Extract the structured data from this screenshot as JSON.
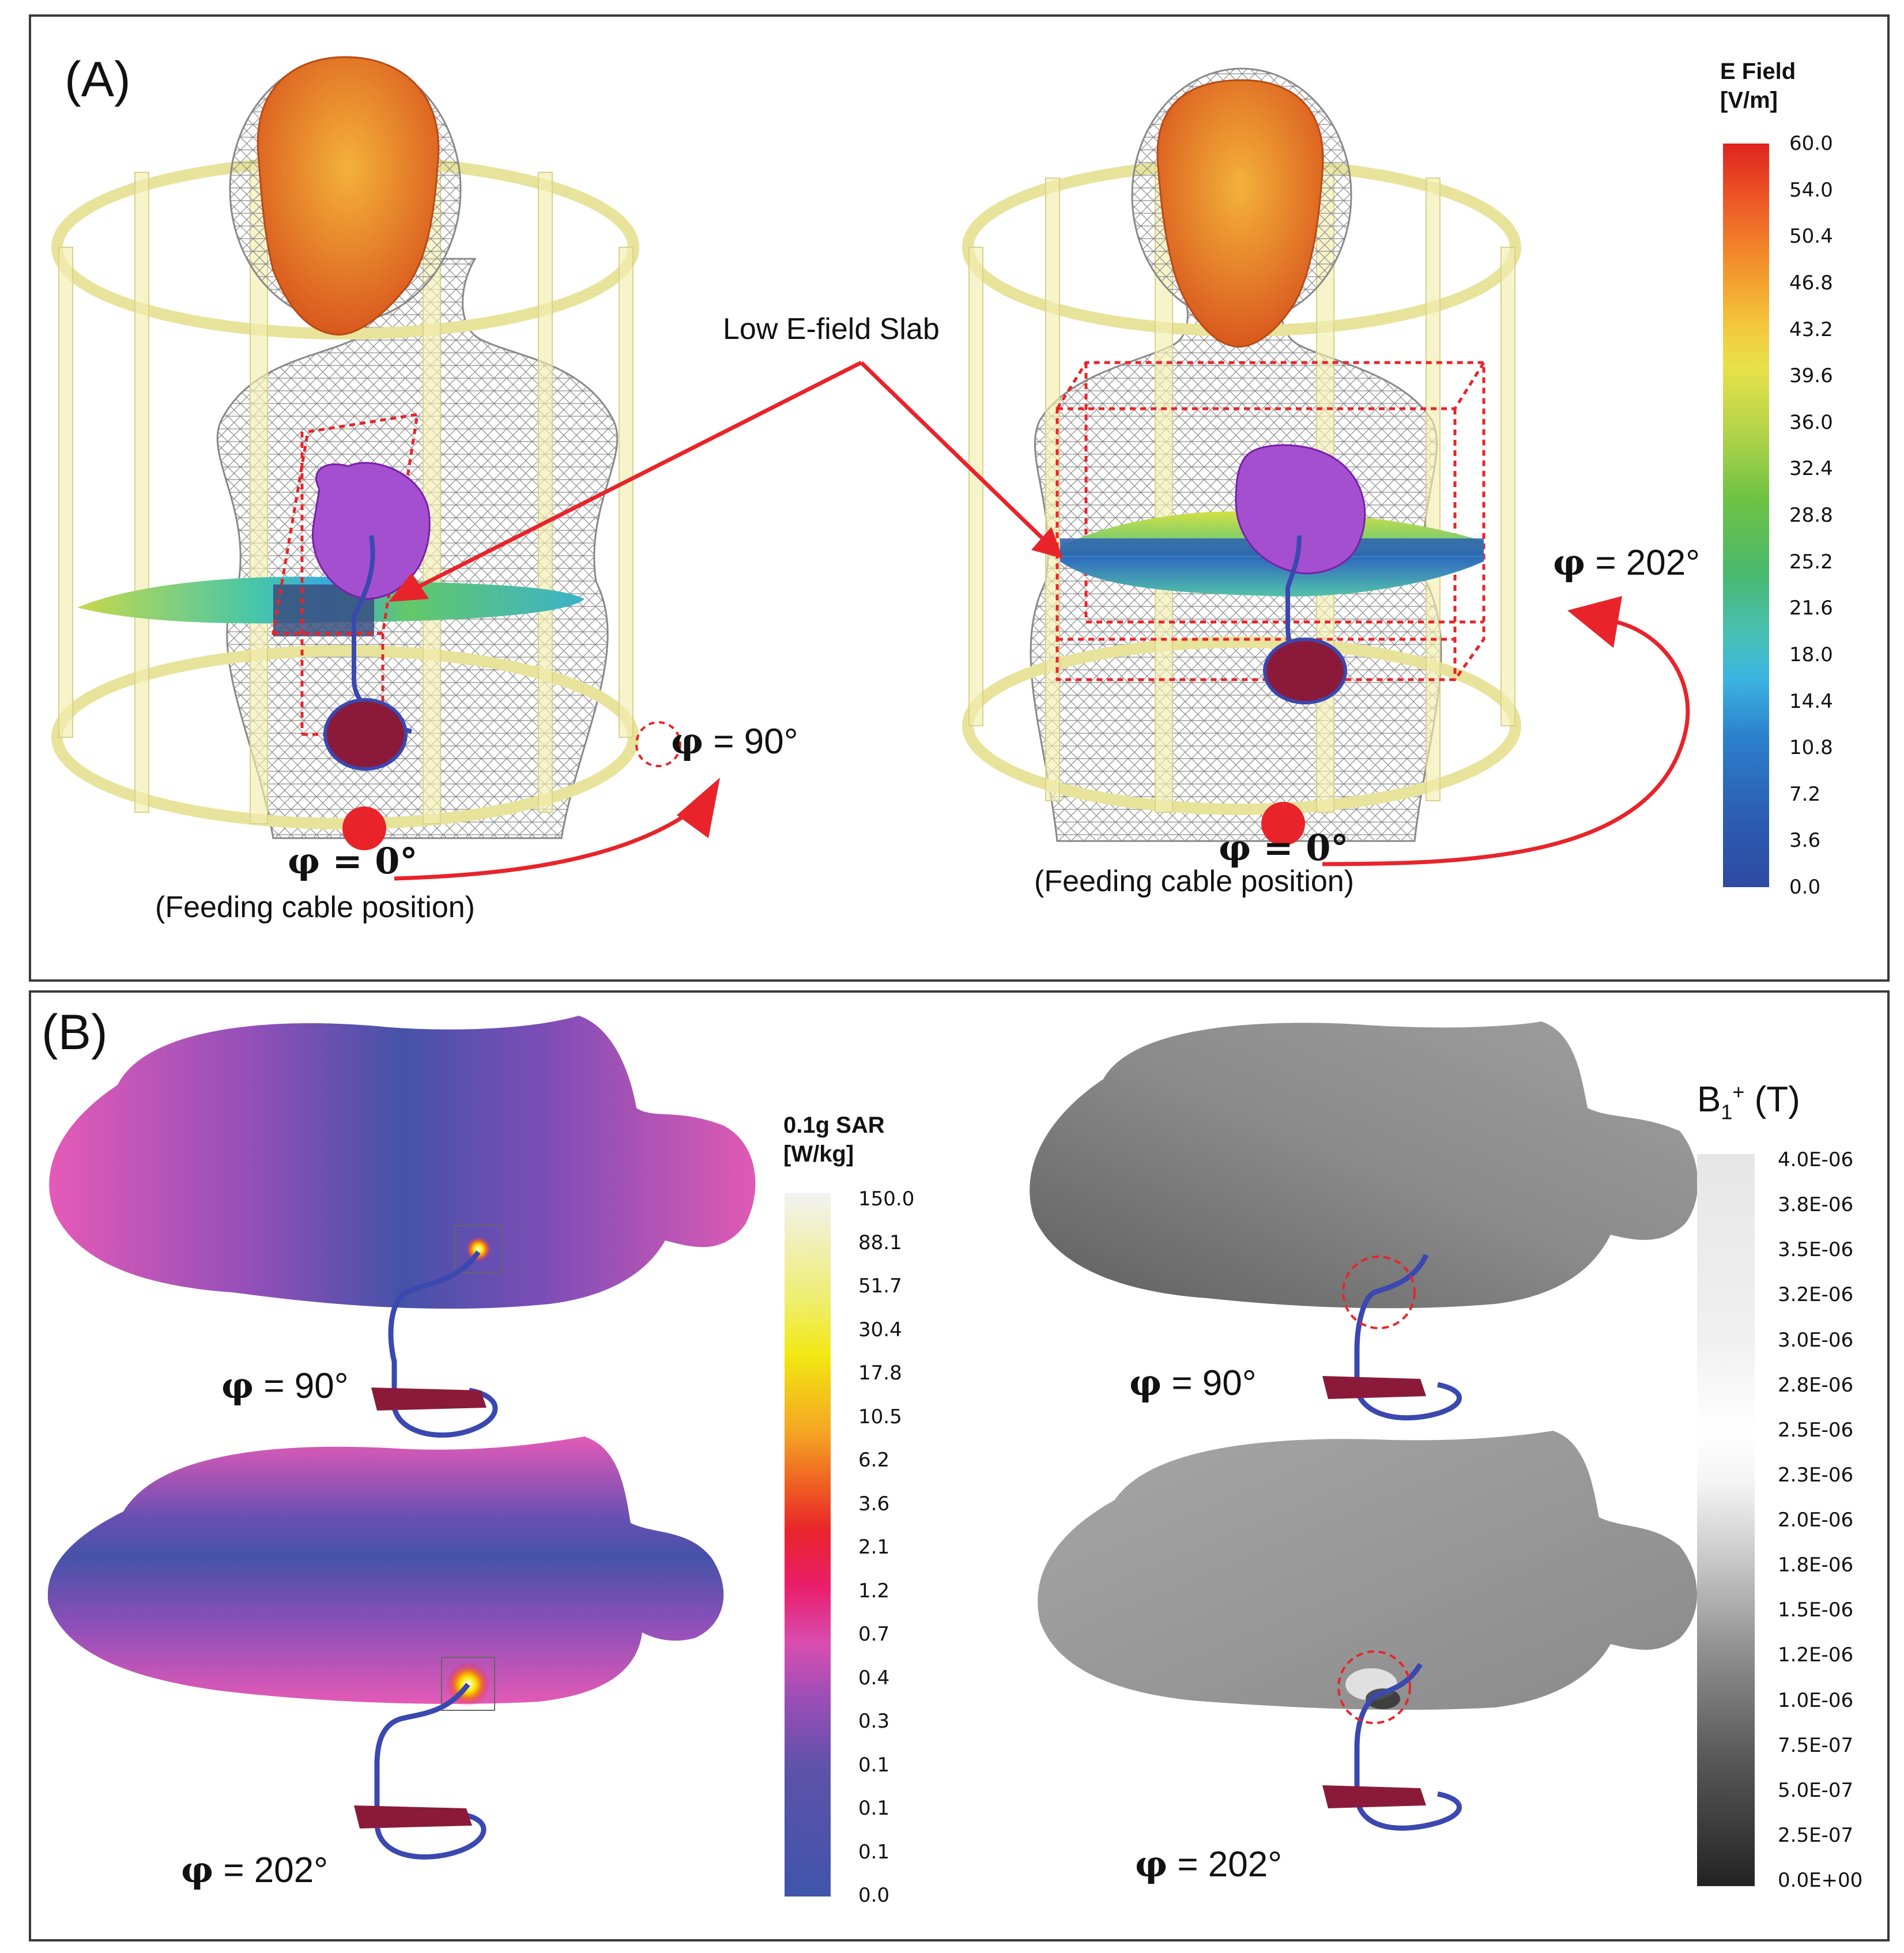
{
  "panel_a": {
    "label": "(A)",
    "annotation": "Low E-field Slab",
    "left_model": {
      "phi_feed_symbol": "φ = 0°",
      "feed_note": "(Feeding cable position)",
      "phi_rot_symbol": "φ",
      "phi_rot_value": "= 90°"
    },
    "right_model": {
      "phi_feed_symbol": "φ = 0°",
      "feed_note": "(Feeding cable position)",
      "phi_rot_symbol": "φ",
      "phi_rot_value": "= 202°"
    },
    "colorbar": {
      "title_line1": "E Field",
      "title_line2": "[V/m]",
      "ticks": [
        "60.0",
        "54.0",
        "50.4",
        "46.8",
        "43.2",
        "39.6",
        "36.0",
        "32.4",
        "28.8",
        "25.2",
        "21.6",
        "18.0",
        "14.4",
        "10.8",
        "7.2",
        "3.6",
        "0.0"
      ]
    }
  },
  "panel_b": {
    "label": "(B)",
    "sar_90": {
      "symbol": "φ",
      "value": "= 90°"
    },
    "sar_202": {
      "symbol": "φ",
      "value": "= 202°"
    },
    "b1_90": {
      "symbol": "φ",
      "value": "= 90°"
    },
    "b1_202": {
      "symbol": "φ",
      "value": "= 202°"
    },
    "sar_colorbar": {
      "title_line1": "0.1g SAR",
      "title_line2": "[W/kg]",
      "ticks": [
        "150.0",
        "88.1",
        "51.7",
        "30.4",
        "17.8",
        "10.5",
        "6.2",
        "3.6",
        "2.1",
        "1.2",
        "0.7",
        "0.4",
        "0.3",
        "0.1",
        "0.1",
        "0.1",
        "0.0"
      ]
    },
    "b1_colorbar": {
      "title_main": "B",
      "title_sub": "1",
      "title_sup": "+",
      "title_unit": " (T)",
      "ticks": [
        "4.0E-06",
        "3.8E-06",
        "3.5E-06",
        "3.2E-06",
        "3.0E-06",
        "2.8E-06",
        "2.5E-06",
        "2.3E-06",
        "2.0E-06",
        "1.8E-06",
        "1.5E-06",
        "1.2E-06",
        "1.0E-06",
        "7.5E-07",
        "5.0E-07",
        "2.5E-07",
        "0.0E+00"
      ]
    }
  },
  "colors": {
    "arrow_red": "#e8242a",
    "coil_yellow": "#f3eeb0",
    "head_orange": "#e07a22",
    "heart_purple": "#9b30c8",
    "lead_blue": "#3a48b0",
    "implant_maroon": "#8b1a3a"
  }
}
